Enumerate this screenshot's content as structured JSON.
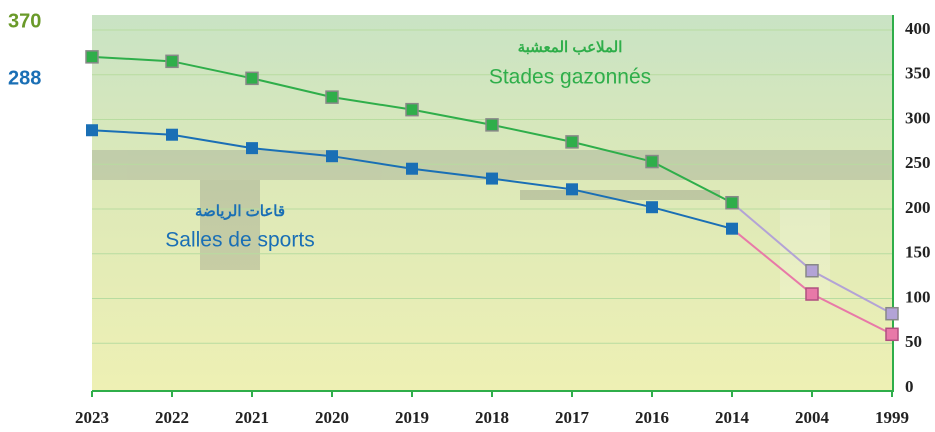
{
  "chart_data": {
    "type": "line",
    "categories": [
      "2023",
      "2022",
      "2021",
      "2020",
      "2019",
      "2018",
      "2017",
      "2016",
      "2014",
      "2004",
      "1999"
    ],
    "series": [
      {
        "name": "Stades gazonnés",
        "label_ar": "الملاعب المعشبة",
        "color": "#2fae4a",
        "tail_color": "#b3a3d6",
        "tail_start": 8,
        "values": [
          370,
          365,
          346,
          325,
          311,
          294,
          275,
          253,
          207,
          131,
          83
        ]
      },
      {
        "name": "Salles de sports",
        "label_ar": "قاعات الرياضة",
        "color": "#1a6fb5",
        "tail_color": "#e879a8",
        "tail_start": 8,
        "values": [
          288,
          283,
          268,
          259,
          245,
          234,
          222,
          202,
          178,
          105,
          60
        ]
      }
    ],
    "annotations": [
      {
        "text": "370",
        "color": "#6a9a2a"
      },
      {
        "text": "288",
        "color": "#1a6fb5"
      }
    ],
    "ylim": [
      0,
      400
    ],
    "yticks": [
      0,
      50,
      100,
      150,
      200,
      250,
      300,
      350,
      400
    ],
    "grid": true,
    "y_axis_side": "right"
  }
}
